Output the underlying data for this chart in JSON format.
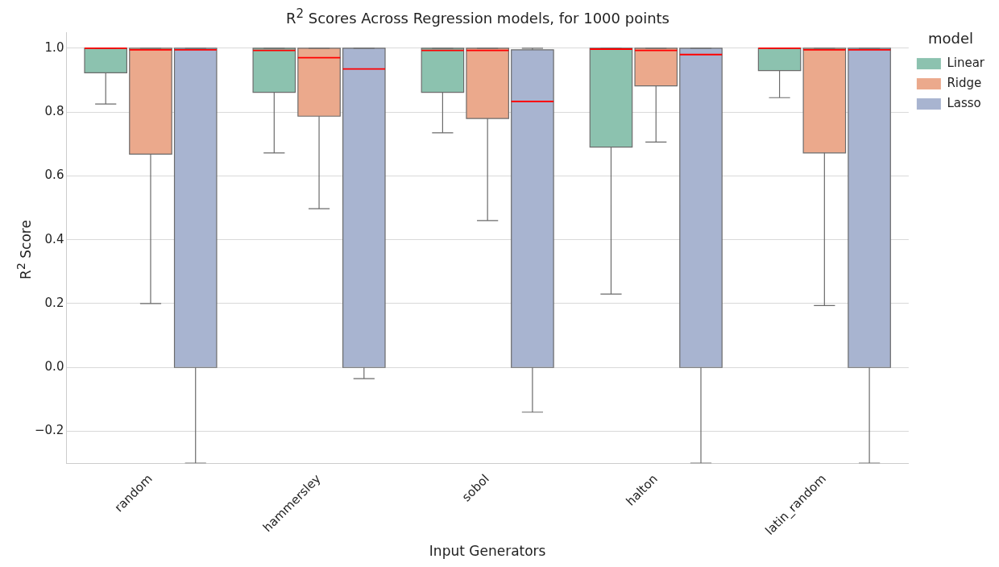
{
  "chart_data": {
    "type": "box",
    "title": "R$^{2}$ Scores Across Regression models, for 1000 points",
    "xlabel": "Input Generators",
    "ylabel": "R$^{2}$ Score",
    "legend_title": "model",
    "categories": [
      "random",
      "hammersley",
      "sobol",
      "halton",
      "latin_random"
    ],
    "series": [
      {
        "name": "Linear",
        "color": "#8cc2af",
        "boxes": [
          {
            "low": 0.825,
            "q1": 0.923,
            "median": 1.0,
            "q3": 1.0,
            "high": 1.0
          },
          {
            "low": 0.672,
            "q1": 0.862,
            "median": 0.993,
            "q3": 1.0,
            "high": 1.0
          },
          {
            "low": 0.735,
            "q1": 0.862,
            "median": 0.993,
            "q3": 1.0,
            "high": 1.0
          },
          {
            "low": 0.23,
            "q1": 0.69,
            "median": 0.997,
            "q3": 1.0,
            "high": 1.0
          },
          {
            "low": 0.845,
            "q1": 0.93,
            "median": 1.0,
            "q3": 1.0,
            "high": 1.0
          }
        ]
      },
      {
        "name": "Ridge",
        "color": "#eba98c",
        "boxes": [
          {
            "low": 0.2,
            "q1": 0.668,
            "median": 0.995,
            "q3": 1.0,
            "high": 1.0
          },
          {
            "low": 0.497,
            "q1": 0.787,
            "median": 0.97,
            "q3": 1.0,
            "high": 1.0
          },
          {
            "low": 0.46,
            "q1": 0.78,
            "median": 0.993,
            "q3": 1.0,
            "high": 1.0
          },
          {
            "low": 0.706,
            "q1": 0.882,
            "median": 0.993,
            "q3": 1.0,
            "high": 1.0
          },
          {
            "low": 0.194,
            "q1": 0.672,
            "median": 0.995,
            "q3": 1.0,
            "high": 1.0
          }
        ]
      },
      {
        "name": "Lasso",
        "color": "#a8b4d0",
        "boxes": [
          {
            "low": -0.3,
            "q1": 0.0,
            "median": 0.995,
            "q3": 1.0,
            "high": 1.0
          },
          {
            "low": -0.035,
            "q1": 0.0,
            "median": 0.935,
            "q3": 1.0,
            "high": 1.0
          },
          {
            "low": -0.14,
            "q1": 0.0,
            "median": 0.833,
            "q3": 0.995,
            "high": 1.0
          },
          {
            "low": -0.3,
            "q1": 0.0,
            "median": 0.98,
            "q3": 1.0,
            "high": 1.0
          },
          {
            "low": -0.3,
            "q1": 0.0,
            "median": 0.995,
            "q3": 1.0,
            "high": 1.0
          }
        ]
      }
    ],
    "ylim": [
      -0.3,
      1.05
    ],
    "yticks": [
      {
        "value": -0.2,
        "label": "−0.2"
      },
      {
        "value": 0.0,
        "label": "0.0"
      },
      {
        "value": 0.2,
        "label": "0.2"
      },
      {
        "value": 0.4,
        "label": "0.4"
      },
      {
        "value": 0.6,
        "label": "0.6"
      },
      {
        "value": 0.8,
        "label": "0.8"
      },
      {
        "value": 1.0,
        "label": "1.0"
      }
    ],
    "grid": "y",
    "legend": "top right"
  }
}
